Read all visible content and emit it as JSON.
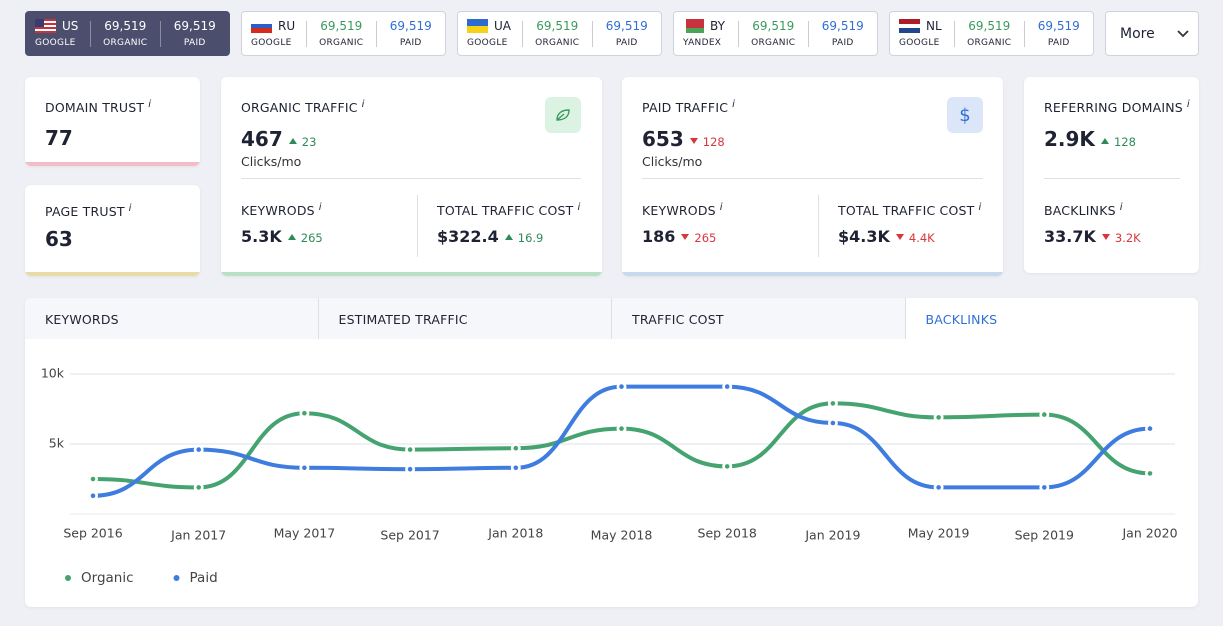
{
  "regions": [
    {
      "code": "US",
      "engine": "GOOGLE",
      "organic": "69,519",
      "organic_label": "ORGANIC",
      "paid": "69,519",
      "paid_label": "PAID"
    },
    {
      "code": "RU",
      "engine": "GOOGLE",
      "organic": "69,519",
      "organic_label": "ORGANIC",
      "paid": "69,519",
      "paid_label": "PAID"
    },
    {
      "code": "UA",
      "engine": "GOOGLE",
      "organic": "69,519",
      "organic_label": "ORGANIC",
      "paid": "69,519",
      "paid_label": "PAID"
    },
    {
      "code": "BY",
      "engine": "YANDEX",
      "organic": "69,519",
      "organic_label": "ORGANIC",
      "paid": "69,519",
      "paid_label": "PAID"
    },
    {
      "code": "NL",
      "engine": "GOOGLE",
      "organic": "69,519",
      "organic_label": "ORGANIC",
      "paid": "69,519",
      "paid_label": "PAID"
    }
  ],
  "more_button": "More",
  "info_mark": "i",
  "domain_trust": {
    "label": "DOMAIN TRUST",
    "value": "77"
  },
  "page_trust": {
    "label": "PAGE TRUST",
    "value": "63"
  },
  "organic_traffic": {
    "label": "ORGANIC TRAFFIC",
    "value": "467",
    "change": "23",
    "unit": "Clicks/mo",
    "keywords": {
      "label": "KEYWRODS",
      "value": "5.3K",
      "change": "265"
    },
    "total_traffic_cost": {
      "label": "TOTAL TRAFFIC COST",
      "value": "$322.4",
      "change": "16.9"
    }
  },
  "paid_traffic": {
    "label": "PAID TRAFFIC",
    "value": "653",
    "change": "128",
    "unit": "Clicks/mo",
    "keywords": {
      "label": "KEYWRODS",
      "value": "186",
      "change": "265"
    },
    "total_traffic_cost": {
      "label": "TOTAL TRAFFIC COST",
      "value": "$4.3K",
      "change": "4.4K"
    }
  },
  "referring_domains": {
    "label": "REFERRING DOMAINS",
    "value": "2.9K",
    "change": "128"
  },
  "backlinks": {
    "label": "BACKLINKS",
    "value": "33.7K",
    "change": "3.2K"
  },
  "tabs": [
    "KEYWORDS",
    "ESTIMATED TRAFFIC",
    "TRAFFIC COST",
    "BACKLINKS"
  ],
  "chart_data": {
    "type": "line",
    "categories": [
      "Sep 2016",
      "Jan 2017",
      "May 2017",
      "Sep 2017",
      "Jan 2018",
      "May 2018",
      "Sep 2018",
      "Jan 2019",
      "May 2019",
      "Sep 2019",
      "Jan 2020"
    ],
    "series": [
      {
        "name": "Organic",
        "color": "#45a36f",
        "values": [
          2500,
          1900,
          7200,
          4600,
          4700,
          6100,
          3400,
          7900,
          6900,
          7100,
          2900
        ]
      },
      {
        "name": "Paid",
        "color": "#3e7ce0",
        "values": [
          1300,
          4600,
          3300,
          3200,
          3300,
          9100,
          9100,
          6500,
          1900,
          1900,
          6100
        ]
      }
    ],
    "ylim": [
      0,
      10000
    ],
    "yticks": [
      {
        "value": 5000,
        "label": "5k"
      },
      {
        "value": 10000,
        "label": "10k"
      }
    ],
    "grid": true
  }
}
